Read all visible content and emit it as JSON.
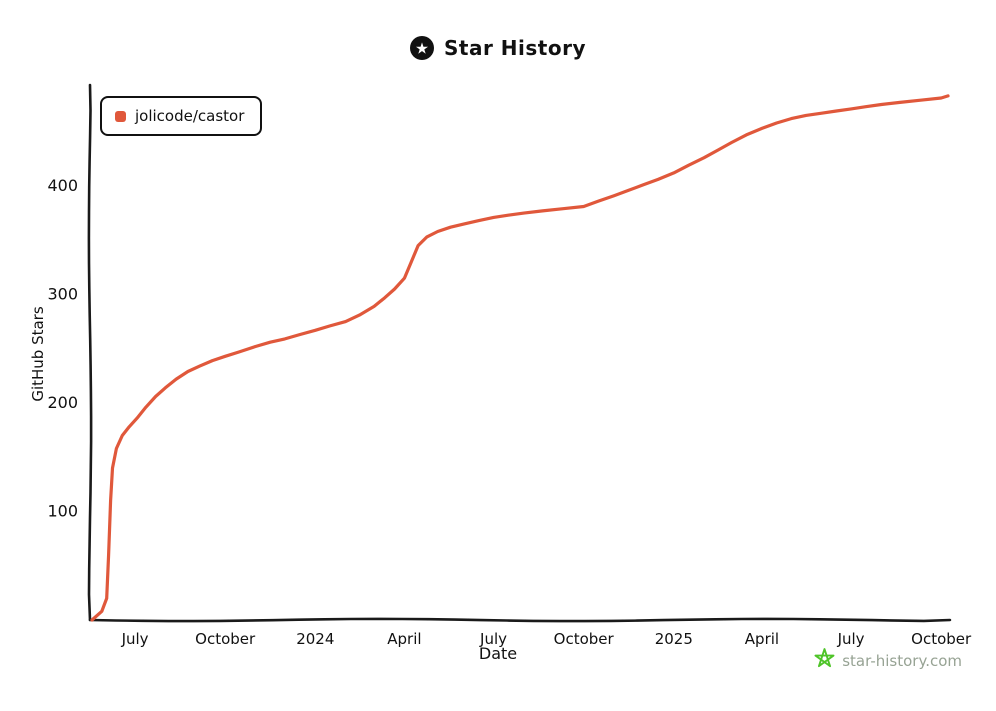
{
  "header": {
    "title": "Star History",
    "logo_icon": "star-history-logo"
  },
  "legend": {
    "label": "jolicode/castor",
    "marker_color": "#e0583b"
  },
  "watermark": {
    "text": "star-history.com",
    "star_icon": "doodle-star",
    "star_color": "#4ec428",
    "text_color": "#97a394"
  },
  "colors": {
    "axis": "#1a1a1a",
    "background": "#ffffff",
    "line": "#e0583b"
  },
  "chart_data": {
    "type": "line",
    "title": "Star History",
    "xlabel": "Date",
    "ylabel": "GitHub Stars",
    "grid": false,
    "legend_position": "top-left",
    "x_range": [
      "2023-05-16",
      "2025-10-10"
    ],
    "ylim": [
      0,
      493
    ],
    "y_ticks": [
      100,
      200,
      300,
      400
    ],
    "x_ticks": [
      {
        "date": "2023-07-01",
        "label": "July"
      },
      {
        "date": "2023-10-01",
        "label": "October"
      },
      {
        "date": "2024-01-01",
        "label": "2024"
      },
      {
        "date": "2024-04-01",
        "label": "April"
      },
      {
        "date": "2024-07-01",
        "label": "July"
      },
      {
        "date": "2024-10-01",
        "label": "October"
      },
      {
        "date": "2025-01-01",
        "label": "2025"
      },
      {
        "date": "2025-04-01",
        "label": "April"
      },
      {
        "date": "2025-07-01",
        "label": "July"
      },
      {
        "date": "2025-10-01",
        "label": "October"
      }
    ],
    "series": [
      {
        "name": "jolicode/castor",
        "color": "#e0583b",
        "points": [
          [
            "2023-05-18",
            0
          ],
          [
            "2023-05-28",
            8
          ],
          [
            "2023-06-02",
            20
          ],
          [
            "2023-06-04",
            60
          ],
          [
            "2023-06-06",
            110
          ],
          [
            "2023-06-08",
            140
          ],
          [
            "2023-06-12",
            158
          ],
          [
            "2023-06-18",
            170
          ],
          [
            "2023-06-25",
            178
          ],
          [
            "2023-07-03",
            186
          ],
          [
            "2023-07-12",
            196
          ],
          [
            "2023-07-22",
            206
          ],
          [
            "2023-08-01",
            214
          ],
          [
            "2023-08-12",
            222
          ],
          [
            "2023-08-24",
            229
          ],
          [
            "2023-09-05",
            234
          ],
          [
            "2023-09-18",
            239
          ],
          [
            "2023-10-01",
            243
          ],
          [
            "2023-10-15",
            247
          ],
          [
            "2023-11-01",
            252
          ],
          [
            "2023-11-16",
            256
          ],
          [
            "2023-12-01",
            259
          ],
          [
            "2023-12-16",
            263
          ],
          [
            "2024-01-01",
            267
          ],
          [
            "2024-01-16",
            271
          ],
          [
            "2024-02-01",
            275
          ],
          [
            "2024-02-15",
            281
          ],
          [
            "2024-03-01",
            289
          ],
          [
            "2024-03-12",
            297
          ],
          [
            "2024-03-22",
            305
          ],
          [
            "2024-04-01",
            315
          ],
          [
            "2024-04-08",
            330
          ],
          [
            "2024-04-15",
            345
          ],
          [
            "2024-04-24",
            353
          ],
          [
            "2024-05-05",
            358
          ],
          [
            "2024-05-18",
            362
          ],
          [
            "2024-06-01",
            365
          ],
          [
            "2024-06-16",
            368
          ],
          [
            "2024-07-01",
            371
          ],
          [
            "2024-07-16",
            373
          ],
          [
            "2024-08-01",
            375
          ],
          [
            "2024-08-20",
            377
          ],
          [
            "2024-09-10",
            379
          ],
          [
            "2024-10-01",
            381
          ],
          [
            "2024-10-16",
            386
          ],
          [
            "2024-11-01",
            391
          ],
          [
            "2024-11-16",
            396
          ],
          [
            "2024-12-01",
            401
          ],
          [
            "2024-12-16",
            406
          ],
          [
            "2025-01-01",
            412
          ],
          [
            "2025-01-16",
            419
          ],
          [
            "2025-02-01",
            426
          ],
          [
            "2025-02-15",
            433
          ],
          [
            "2025-03-01",
            440
          ],
          [
            "2025-03-16",
            447
          ],
          [
            "2025-04-01",
            453
          ],
          [
            "2025-04-16",
            458
          ],
          [
            "2025-05-01",
            462
          ],
          [
            "2025-05-16",
            465
          ],
          [
            "2025-06-01",
            467
          ],
          [
            "2025-06-16",
            469
          ],
          [
            "2025-07-01",
            471
          ],
          [
            "2025-07-16",
            473
          ],
          [
            "2025-08-01",
            475
          ],
          [
            "2025-08-20",
            477
          ],
          [
            "2025-09-10",
            479
          ],
          [
            "2025-10-01",
            481
          ],
          [
            "2025-10-08",
            483
          ]
        ]
      }
    ]
  }
}
